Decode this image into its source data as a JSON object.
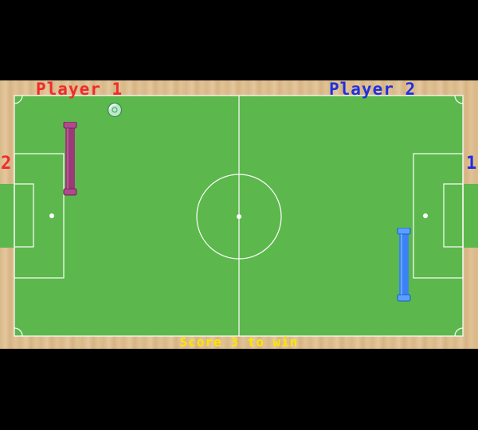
{
  "players": {
    "player1": {
      "label": "Player 1",
      "score": "2",
      "color": "#f02b2b",
      "paddle_color": "#9b3a78"
    },
    "player2": {
      "label": "Player 2",
      "score": "1",
      "color": "#1f2fe0",
      "paddle_color": "#3b82f6"
    }
  },
  "footer": {
    "text": "Score 3 to win",
    "color": "#ffe600"
  },
  "colors": {
    "field": "#5cb84c",
    "lines": "#ffffff",
    "wood": "#d9b98a",
    "background": "#000000"
  },
  "icons": {
    "ball": "soccer-ball-icon"
  }
}
